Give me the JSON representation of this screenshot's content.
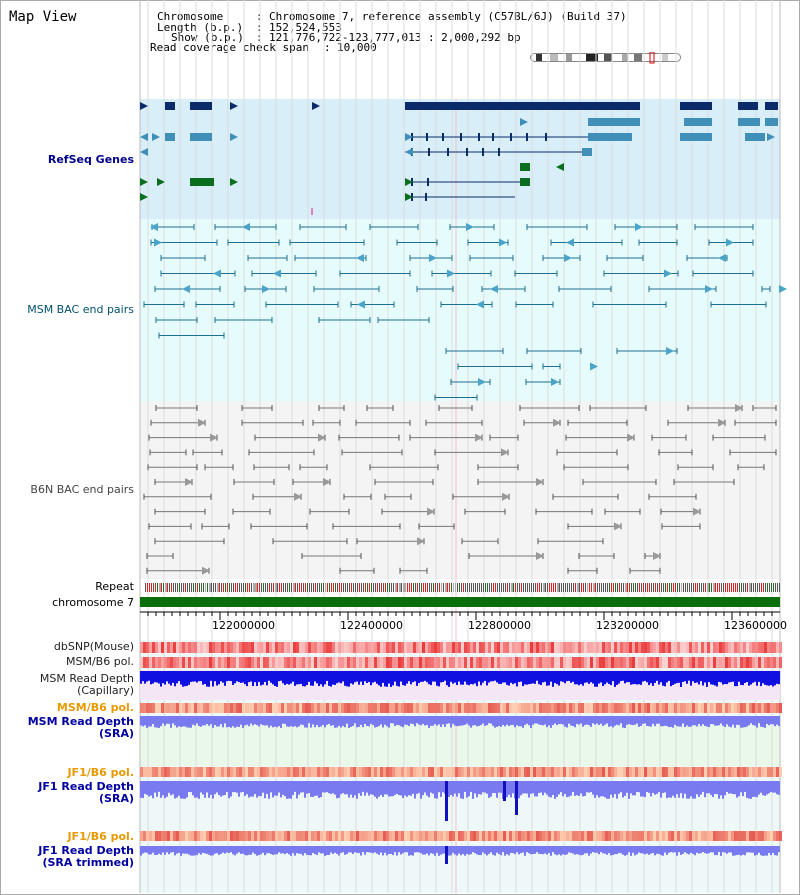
{
  "page": {
    "title": "Map View"
  },
  "info": {
    "chromosome_key": "Chromosome",
    "chromosome_value": "Chromosome 7, reference assembly (C57BL/6J) (Build 37)",
    "length_key": "Length (b.p.)",
    "length_value": "152,524,553",
    "show_key": "Show (b.p.)",
    "show_value": "121,776,722-123,777,013 : 2,000,292 bp",
    "coverage_key": "Read coverage check span",
    "coverage_value": "10,000"
  },
  "tracks": {
    "refseq": "RefSeq Genes",
    "msm_bac": "MSM BAC end pairs",
    "b6n_bac": "B6N BAC end pairs",
    "repeat": "Repeat",
    "chromosome": "chromosome 7",
    "dbsnp": "dbSNP(Mouse)",
    "msm_b6_pol": "MSM/B6 pol.",
    "msm_depth_cap": "MSM Read Depth\n(Capillary)",
    "msm_b6_pol2": "MSM/B6 pol.",
    "msm_depth_sra": "MSM Read Depth\n(SRA)",
    "jf1_b6_pol": "JF1/B6 pol.",
    "jf1_depth_sra": "JF1 Read Depth\n(SRA)",
    "jf1_b6_pol2": "JF1/B6 pol.",
    "jf1_depth_trim": "JF1 Read Depth\n(SRA trimmed)"
  },
  "axis": {
    "ticks": [
      "122000000",
      "122400000",
      "122800000",
      "123200000",
      "123600000"
    ],
    "tick_values": [
      122000000,
      122400000,
      122800000,
      123200000,
      123600000
    ],
    "start": 121776722,
    "end": 123777013
  },
  "colors": {
    "refseq_bg": "#d8eef8",
    "msm_bg": "#e6fbfb",
    "b6n_bg": "#f4f4f4",
    "chromosome_bar": "#0a6e0a",
    "gene_dark": "#0a2a6a",
    "gene_mid": "#3f8fb8",
    "gene_green": "#0a6e1e",
    "msm_line": "#1f6f8f",
    "b6n_line": "#777777",
    "depth_blue": "#1010e0",
    "depth_light": "#7a7af0",
    "pol_red": "#f04040"
  }
}
